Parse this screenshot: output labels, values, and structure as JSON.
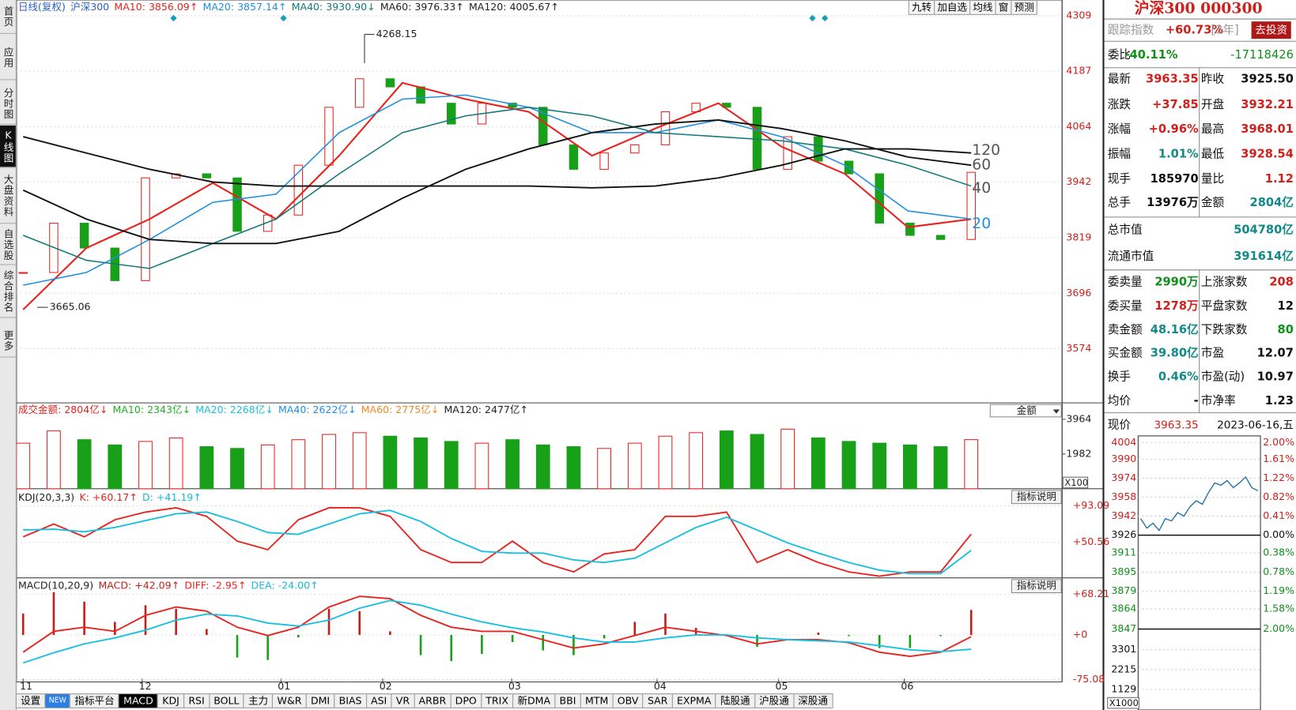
{
  "sidebar": [
    "首页",
    "应用",
    "分时图",
    "K线图",
    "大盘资料",
    "自选股",
    "综合排名",
    "更多"
  ],
  "toolbar": [
    "九转",
    "加自选",
    "均线",
    "窗",
    "预测"
  ],
  "price_chart": {
    "type": "candlestick",
    "legend": [
      "日线(复权)",
      "沪深300",
      "MA10: 3856.09↑",
      "MA20: 3857.14↑",
      "MA40: 3930.90↓",
      "MA60: 3976.33↑",
      "MA120: 4005.67↑"
    ],
    "legend_colors": [
      "#2a5fc7",
      "#2a5fc7",
      "#e8231f",
      "#1f8fe0",
      "#137a7a",
      "#222222",
      "#222222"
    ],
    "ylim": [
      3454,
      4344
    ],
    "yticks": [
      4309,
      4187,
      4064,
      3942,
      3819,
      3696,
      3574
    ],
    "closes": [
      3742,
      3851,
      3796,
      3724,
      3951,
      3960,
      3951,
      3833,
      3869,
      3979,
      4107,
      4170,
      4152,
      4116,
      4070,
      4116,
      4107,
      4024,
      3970,
      4006,
      4024,
      4097,
      4116,
      4107,
      3970,
      4042,
      3988,
      3960,
      3851,
      3824,
      3815,
      3963.35
    ],
    "series": [
      {
        "color": "#e8231f",
        "width": 2,
        "values": [
          3660,
          3796,
          3860,
          3940,
          3860,
          4000,
          4161,
          4125,
          4097,
          4000,
          4060,
          4116,
          4020,
          3960,
          3842,
          3860
        ]
      },
      {
        "color": "#1f8fe0",
        "width": 1.5,
        "values": [
          3714,
          3742,
          3815,
          3897,
          3915,
          4051,
          4125,
          4134,
          4107,
          4051,
          4051,
          4079,
          4042,
          3979,
          3878,
          3860
        ]
      },
      {
        "color": "#137a7a",
        "width": 1.5,
        "values": [
          3824,
          3769,
          3751,
          3806,
          3860,
          3960,
          4051,
          4088,
          4107,
          4088,
          4051,
          4042,
          4033,
          4015,
          3979,
          3933
        ]
      },
      {
        "color": "#111111",
        "width": 1.8,
        "values": [
          3924,
          3860,
          3815,
          3806,
          3806,
          3833,
          3906,
          3970,
          4015,
          4051,
          4070,
          4079,
          4060,
          4033,
          3997,
          3979
        ]
      },
      {
        "color": "#111111",
        "width": 1.8,
        "values": [
          4042,
          4006,
          3970,
          3942,
          3933,
          3933,
          3933,
          3933,
          3933,
          3929,
          3933,
          3951,
          3979,
          4015,
          4015,
          4006
        ]
      }
    ],
    "end_labels": [
      120,
      60,
      40,
      20
    ],
    "end_label_colors": [
      "#555555",
      "#555555",
      "#555555",
      "#1f8fe0"
    ],
    "high_label": 4268.15,
    "low_label": 3665.06,
    "x_labels": [
      "11",
      "12",
      "01",
      "02",
      "03",
      "04",
      "05",
      "06"
    ]
  },
  "volume": {
    "legend": [
      "成交金额: 2804亿↓",
      "MA10: 2343亿↓",
      "MA20: 2268亿↓",
      "MA40: 2622亿↓",
      "MA60: 2775亿↓",
      "MA120: 2477亿↑"
    ],
    "legend_colors": [
      "#e8231f",
      "#21b021",
      "#18c0d8",
      "#1f8fe0",
      "#f08a24",
      "#222222"
    ],
    "dropdown": "金额",
    "unit": "X100",
    "ylim": [
      0,
      4100
    ],
    "yticks": [
      3964,
      1982
    ],
    "values": [
      2600,
      3300,
      2800,
      2500,
      2700,
      2900,
      2400,
      2300,
      2500,
      2800,
      3100,
      3200,
      3000,
      2900,
      2700,
      2600,
      2800,
      2500,
      2400,
      2300,
      2600,
      3000,
      3200,
      3300,
      3100,
      3400,
      2900,
      2700,
      2600,
      2500,
      2400,
      2804
    ]
  },
  "kdj": {
    "legend": [
      "KDJ(20,3,3)",
      "K: +60.17↑",
      "D: +41.19↑"
    ],
    "legend_colors": [
      "#222222",
      "#e8231f",
      "#18b8d8"
    ],
    "button": "指标说明",
    "ylim": [
      9,
      94
    ],
    "yticks": [
      {
        "value": 93.09,
        "label": "+93.09"
      },
      {
        "value": 50.56,
        "label": "+50.56"
      }
    ],
    "k": [
      57,
      72,
      57,
      77,
      86,
      91,
      81,
      52,
      42,
      77,
      91,
      91,
      81,
      42,
      27,
      27,
      52,
      27,
      16,
      37,
      42,
      81,
      81,
      86,
      27,
      42,
      27,
      16,
      11,
      16,
      16,
      60.17
    ],
    "d": [
      65,
      66,
      63,
      68,
      76,
      84,
      86,
      75,
      62,
      60,
      72,
      84,
      88,
      75,
      55,
      40,
      38,
      38,
      30,
      27,
      32,
      50,
      68,
      80,
      65,
      50,
      38,
      27,
      18,
      14,
      14,
      41.19
    ]
  },
  "macd": {
    "legend": [
      "MACD(10,20,9)",
      "MACD: +42.09↑",
      "DIFF: -2.95↑",
      "DEA: -24.00↑"
    ],
    "legend_colors": [
      "#222222",
      "#c0201c",
      "#e8231f",
      "#18b8d8"
    ],
    "button": "指标说明",
    "ylim": [
      -79,
      71
    ],
    "yticks": [
      {
        "value": 68.21,
        "label": "+68.21"
      },
      {
        "value": 0,
        "label": "+0"
      },
      {
        "value": -75.08,
        "label": "-75.08"
      }
    ],
    "macd": [
      36,
      72,
      56,
      22,
      50,
      44,
      10,
      -38,
      -42,
      -4,
      44,
      40,
      6,
      -34,
      -44,
      -32,
      -12,
      -26,
      -34,
      -6,
      22,
      36,
      12,
      -2,
      -20,
      0,
      4,
      -2,
      -22,
      -22,
      -2,
      42.09
    ],
    "diff": [
      -29,
      6,
      13,
      6,
      33,
      47,
      40,
      13,
      -1,
      13,
      47,
      65,
      61,
      33,
      13,
      6,
      6,
      -8,
      -22,
      -15,
      -1,
      13,
      6,
      -1,
      -15,
      -8,
      -8,
      -13,
      -29,
      -36,
      -29,
      -2.95
    ],
    "dea": [
      -47,
      -30,
      -15,
      -5,
      8,
      25,
      35,
      32,
      20,
      15,
      25,
      45,
      58,
      50,
      35,
      22,
      12,
      5,
      -5,
      -12,
      -12,
      -5,
      0,
      0,
      -5,
      -8,
      -10,
      -12,
      -18,
      -25,
      -28,
      -24
    ]
  },
  "tabs": [
    "设置",
    "NEW",
    "指标平台",
    "MACD",
    "KDJ",
    "RSI",
    "BOLL",
    "主力",
    "W&R",
    "DMI",
    "BIAS",
    "ASI",
    "VR",
    "ARBR",
    "DPO",
    "TRIX",
    "新DMA",
    "BBI",
    "MTM",
    "OBV",
    "SAR",
    "EXPMA",
    "陆股通",
    "沪股通",
    "深股通"
  ],
  "quote_panel": {
    "title": "沪深300 000300",
    "track": [
      "跟踪指数",
      "+60.73%",
      "[3年]"
    ],
    "button": "去投资",
    "rows": [
      [
        "委比",
        "-40.11%",
        "-17118426"
      ],
      [
        "最新",
        "3963.35",
        "昨收",
        "3925.50"
      ],
      [
        "涨跌",
        "+37.85",
        "开盘",
        "3932.21"
      ],
      [
        "涨幅",
        "+0.96%",
        "最高",
        "3968.01"
      ],
      [
        "振幅",
        "1.01%",
        "最低",
        "3928.54"
      ],
      [
        "现手",
        "185970",
        "量比",
        "1.12"
      ],
      [
        "总手",
        "13976万",
        "金额",
        "2804亿"
      ],
      [
        "总市值",
        "504780亿"
      ],
      [
        "流通市值",
        "391614亿"
      ],
      [
        "委卖量",
        "2990万",
        "上涨家数",
        "208"
      ],
      [
        "委买量",
        "1278万",
        "平盘家数",
        "12"
      ],
      [
        "卖金额",
        "48.16亿",
        "下跌家数",
        "80"
      ],
      [
        "买金额",
        "39.80亿",
        "市盈",
        "12.07"
      ],
      [
        "换手",
        "0.46%",
        "市盈(动)",
        "10.97"
      ],
      [
        "均价",
        "-",
        "市净率",
        "1.23"
      ]
    ],
    "price_row": [
      "现价",
      "3963.35",
      "2023-06-16,五"
    ]
  },
  "mini_chart": {
    "ylim": [
      3847,
      4004
    ],
    "yticks": [
      4004,
      3990,
      3974,
      3958,
      3942,
      3926,
      3911,
      3895,
      3879,
      3864,
      3847
    ],
    "pct_labels": [
      "2.00%",
      "1.61%",
      "1.22%",
      "0.82%",
      "0.41%",
      "0.00%",
      "0.38%",
      "0.78%",
      "1.19%",
      "1.58%",
      "2.00%"
    ],
    "vol_ylim": [
      0,
      3620
    ],
    "vol_yticks": [
      3301,
      2215,
      1129
    ],
    "vol_unit": "X1000",
    "values": [
      3940,
      3932,
      3936,
      3930,
      3940,
      3938,
      3945,
      3942,
      3950,
      3955,
      3952,
      3962,
      3970,
      3968,
      3972,
      3966,
      3970,
      3975,
      3966,
      3963.35
    ]
  }
}
